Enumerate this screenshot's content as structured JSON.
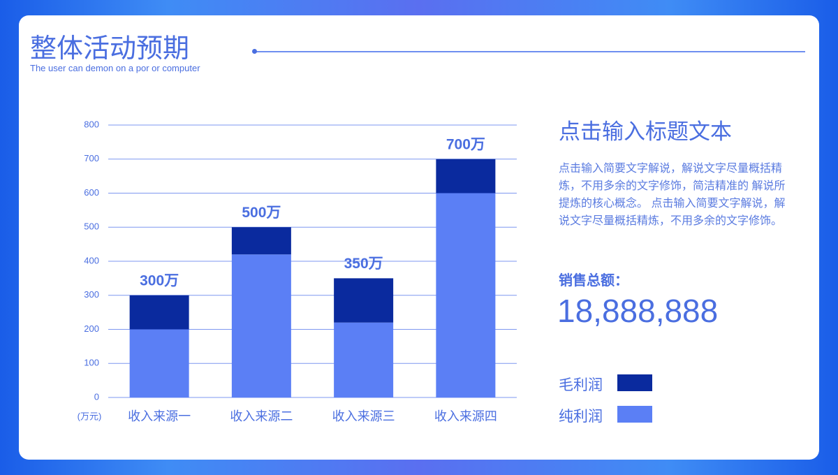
{
  "header": {
    "title": "整体活动预期",
    "subtitle": "The user can demon on a por or computer"
  },
  "chart_data": {
    "type": "bar",
    "stacked": true,
    "y_unit_label": "(万元)",
    "categories": [
      "收入来源一",
      "收入来源二",
      "收入来源三",
      "收入来源四"
    ],
    "series": [
      {
        "name": "纯利润",
        "color": "#5b7ff5",
        "values": [
          200,
          420,
          220,
          600
        ]
      },
      {
        "name": "毛利润",
        "color": "#0a2a9e",
        "values": [
          100,
          80,
          130,
          100
        ]
      }
    ],
    "totals": {
      "values": [
        300,
        500,
        350,
        700
      ],
      "value_labels": [
        "300万",
        "500万",
        "350万",
        "700万"
      ]
    },
    "ylim": [
      0,
      800
    ],
    "yticks": [
      0,
      100,
      200,
      300,
      400,
      500,
      600,
      700,
      800
    ],
    "grid": true
  },
  "panel": {
    "title": "点击输入标题文本",
    "text": "点击输入简要文字解说，解说文字尽量概括精炼，不用多余的文字修饰，简洁精准的 解说所提炼的核心概念。 点击输入简要文字解说，解说文字尽量概括精炼，不用多余的文字修饰。",
    "sales_label": "销售总额：",
    "sales_value": "18,888,888"
  }
}
